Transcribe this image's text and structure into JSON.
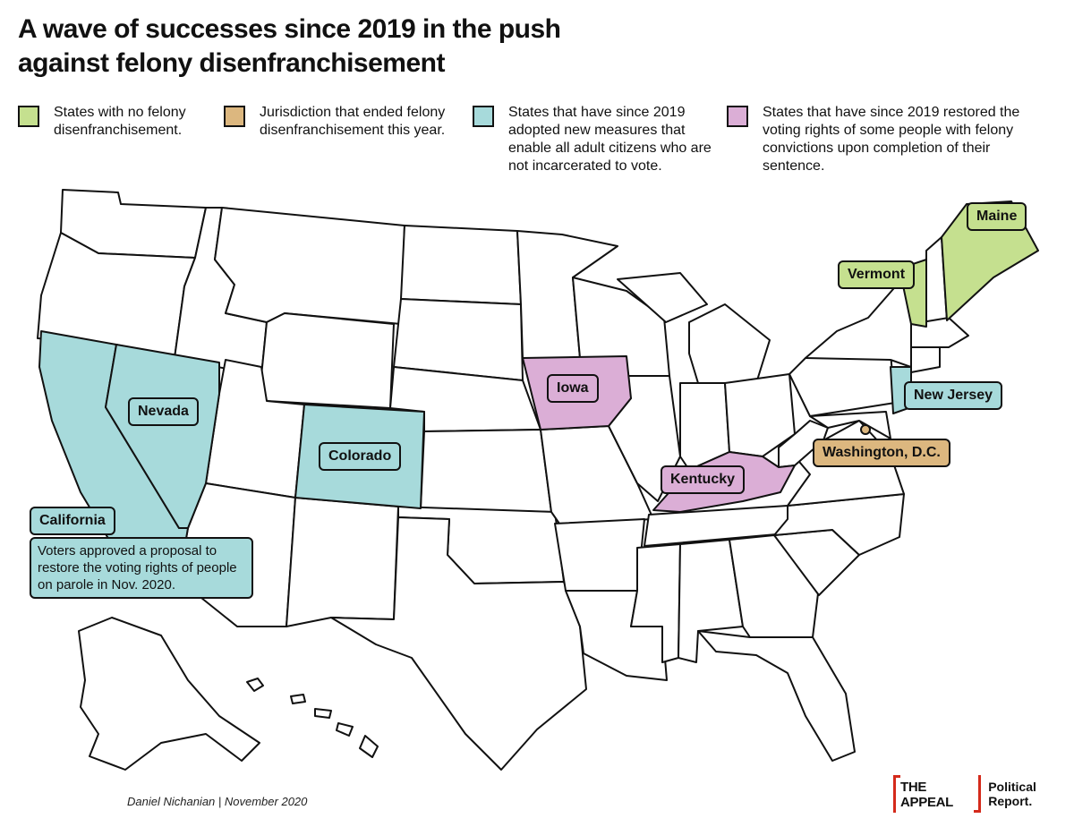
{
  "title": "A wave of successes since 2019 in the push against felony disenfranchisement",
  "colors": {
    "no_disenfranchisement": "#c5e08f",
    "ended_this_year": "#dcb77f",
    "all_non_incarcerated": "#a7dadb",
    "restored_some": "#dbaed6",
    "default": "#ffffff",
    "brand_red": "#d42a1b"
  },
  "legend": [
    {
      "key": "no_disenfranchisement",
      "text": "States with no felony disenfranchisement."
    },
    {
      "key": "ended_this_year",
      "text": "Jurisdiction that ended felony disenfranchisement this year."
    },
    {
      "key": "all_non_incarcerated",
      "text": "States that have since 2019 adopted new measures that enable all adult citizens who are not incarcerated to vote."
    },
    {
      "key": "restored_some",
      "text": "States that have since 2019 restored the voting rights of some people with felony convictions upon completion of their sentence."
    }
  ],
  "highlighted": {
    "maine": {
      "label": "Maine",
      "category": "no_disenfranchisement"
    },
    "vermont": {
      "label": "Vermont",
      "category": "no_disenfranchisement"
    },
    "washington_dc": {
      "label": "Washington, D.C.",
      "category": "ended_this_year"
    },
    "california": {
      "label": "California",
      "category": "all_non_incarcerated"
    },
    "nevada": {
      "label": "Nevada",
      "category": "all_non_incarcerated"
    },
    "colorado": {
      "label": "Colorado",
      "category": "all_non_incarcerated"
    },
    "new_jersey": {
      "label": "New Jersey",
      "category": "all_non_incarcerated"
    },
    "iowa": {
      "label": "Iowa",
      "category": "restored_some"
    },
    "kentucky": {
      "label": "Kentucky",
      "category": "restored_some"
    }
  },
  "california_note": "Voters approved a proposal to restore the voting rights of people on parole in Nov. 2020.",
  "credit": "Daniel Nichanian | November 2020",
  "brand": {
    "mark": "THE APPEAL",
    "text": "Political Report."
  }
}
